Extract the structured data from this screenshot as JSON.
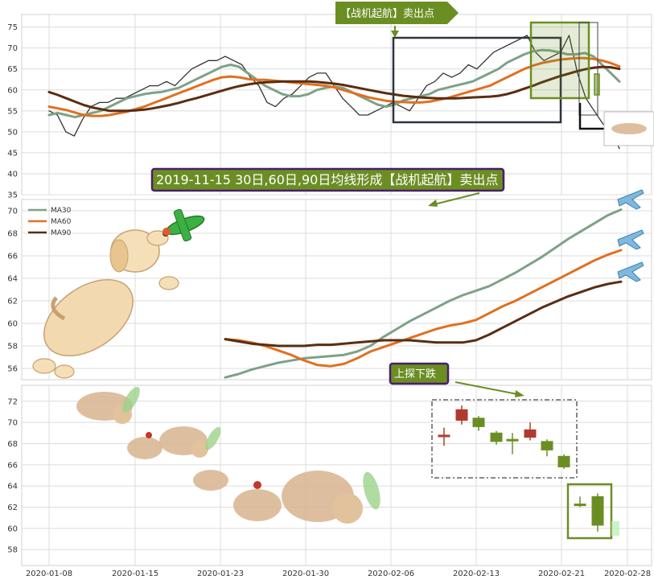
{
  "chart_data": [
    {
      "type": "line",
      "panel": "price",
      "ylim": [
        35,
        78
      ],
      "yticks": [
        35,
        40,
        45,
        50,
        55,
        60,
        65,
        70,
        75
      ],
      "series": [
        {
          "key": "close",
          "color": "#333333",
          "values": [
            55,
            54,
            50,
            49,
            53,
            56,
            57,
            57,
            58,
            58,
            59,
            60,
            61,
            61,
            62,
            61,
            63,
            65,
            66,
            67,
            67,
            68,
            67,
            66,
            63,
            61,
            57,
            56,
            58,
            59,
            61,
            63,
            64,
            64,
            61,
            58,
            56,
            54,
            54,
            55,
            56,
            57,
            56,
            55,
            58,
            61,
            62,
            64,
            63,
            64,
            66,
            65,
            67,
            69,
            70,
            71,
            72,
            73,
            69,
            67,
            68,
            69,
            73,
            64,
            58,
            55,
            52,
            50,
            46
          ]
        },
        {
          "key": "ma30",
          "name": "MA30",
          "color": "#7da287",
          "values": [
            54,
            54.5,
            54,
            53.5,
            54,
            54.5,
            55,
            56,
            57,
            58,
            58.5,
            59,
            59.3,
            59.5,
            60,
            60.5,
            61.5,
            62.5,
            63.5,
            64.5,
            65.5,
            66,
            65.5,
            64,
            62.5,
            61,
            60,
            59,
            58.5,
            58.5,
            59,
            60,
            60.5,
            60.8,
            60.5,
            59.5,
            58.5,
            57.5,
            56.5,
            56,
            56.5,
            57.5,
            58,
            58.5,
            59,
            60,
            60.5,
            61,
            61.5,
            62,
            63,
            64,
            65,
            66.5,
            67.5,
            68.5,
            69.2,
            69.5,
            69.4,
            69,
            68.5,
            68.5,
            68.8,
            68,
            66,
            64,
            62
          ]
        },
        {
          "key": "ma60",
          "name": "MA60",
          "color": "#e07020",
          "values": [
            56,
            55.6,
            55.2,
            54.6,
            54,
            53.8,
            53.8,
            54,
            54.4,
            54.8,
            55.4,
            56,
            56.8,
            57.6,
            58.4,
            59.2,
            60,
            60.8,
            61.6,
            62.4,
            63,
            63.2,
            63,
            62.6,
            62.4,
            62.4,
            62.2,
            62,
            61.8,
            61.6,
            61.4,
            61.2,
            61,
            60.6,
            60,
            59.4,
            58.8,
            58.2,
            57.8,
            57.4,
            57.2,
            57.1,
            57,
            57,
            57.2,
            57.6,
            58,
            58.6,
            59.2,
            59.8,
            60.4,
            61,
            62,
            63,
            64,
            65,
            65.8,
            66.4,
            66.8,
            67.2,
            67.4,
            67.6,
            67.6,
            67.4,
            67,
            66.4,
            65.6
          ]
        },
        {
          "key": "ma90",
          "name": "MA90",
          "color": "#5a2d12",
          "values": [
            59.5,
            58.8,
            58,
            57.2,
            56.4,
            55.8,
            55.4,
            55,
            55,
            55,
            55.1,
            55.3,
            55.6,
            56,
            56.4,
            56.9,
            57.5,
            58,
            58.6,
            59.2,
            59.8,
            60.4,
            60.9,
            61.3,
            61.6,
            61.8,
            61.9,
            62,
            62,
            62,
            62,
            61.9,
            61.7,
            61.5,
            61.2,
            60.8,
            60.4,
            60,
            59.6,
            59.2,
            58.9,
            58.6,
            58.4,
            58.2,
            58.1,
            58,
            58,
            58,
            58.1,
            58.2,
            58.3,
            58.4,
            58.6,
            59,
            59.6,
            60.3,
            61,
            61.8,
            62.5,
            63.2,
            63.8,
            64.4,
            64.9,
            65.3,
            65.5,
            65.4,
            65
          ]
        }
      ],
      "annotation": "【战机起航】卖出点"
    },
    {
      "type": "line",
      "panel": "moving-averages",
      "ylim": [
        55,
        71
      ],
      "yticks": [
        56,
        58,
        60,
        62,
        64,
        66,
        68,
        70
      ],
      "legend": [
        "MA30",
        "MA60",
        "MA90"
      ],
      "legend_position": "top-left",
      "series": [
        {
          "key": "ma30",
          "name": "MA30",
          "color": "#7da287",
          "values": [
            55.2,
            55.5,
            55.9,
            56.2,
            56.5,
            56.7,
            56.9,
            57,
            57.1,
            57.2,
            57.5,
            58,
            58.8,
            59.5,
            60.2,
            60.8,
            61.4,
            62,
            62.5,
            62.9,
            63.3,
            63.9,
            64.5,
            65.2,
            65.9,
            66.7,
            67.5,
            68.2,
            68.9,
            69.6,
            70.1
          ]
        },
        {
          "key": "ma60",
          "name": "MA60",
          "color": "#e07020",
          "values": [
            58.6,
            58.5,
            58.3,
            58,
            57.6,
            57.2,
            56.7,
            56.3,
            56.2,
            56.4,
            56.9,
            57.5,
            57.9,
            58.3,
            58.7,
            59.1,
            59.5,
            59.8,
            60,
            60.3,
            60.9,
            61.5,
            62,
            62.6,
            63.2,
            63.8,
            64.4,
            65,
            65.6,
            66.1,
            66.5
          ]
        },
        {
          "key": "ma90",
          "name": "MA90",
          "color": "#5a2d12",
          "values": [
            58.6,
            58.4,
            58.2,
            58.1,
            58,
            58,
            58,
            58.1,
            58.1,
            58.2,
            58.3,
            58.4,
            58.5,
            58.5,
            58.5,
            58.4,
            58.3,
            58.3,
            58.3,
            58.5,
            59,
            59.6,
            60.2,
            60.8,
            61.4,
            61.9,
            62.4,
            62.8,
            63.2,
            63.5,
            63.7
          ]
        }
      ],
      "annotation": "2019-11-15 30日,60日,90日均线形成【战机起航】卖出点"
    },
    {
      "type": "candlestick",
      "panel": "candles",
      "ylim": [
        56.5,
        73.5
      ],
      "yticks": [
        58,
        60,
        62,
        64,
        66,
        68,
        70,
        72
      ],
      "candles": [
        {
          "open": 68.8,
          "close": 68.8,
          "high": 69.5,
          "low": 67.8,
          "color": "#b03a2e"
        },
        {
          "open": 70.2,
          "close": 71.2,
          "high": 71.6,
          "low": 69.8,
          "color": "#b03a2e"
        },
        {
          "open": 70.4,
          "close": 69.6,
          "high": 70.6,
          "low": 69.2,
          "color": "#6b8e23"
        },
        {
          "open": 69.0,
          "close": 68.2,
          "high": 69.2,
          "low": 67.9,
          "color": "#6b8e23"
        },
        {
          "open": 68.4,
          "close": 68.4,
          "high": 69.0,
          "low": 67.0,
          "color": "#6b8e23"
        },
        {
          "open": 68.6,
          "close": 69.3,
          "high": 70.0,
          "low": 68.3,
          "color": "#b03a2e"
        },
        {
          "open": 68.2,
          "close": 67.4,
          "high": 68.4,
          "low": 66.8,
          "color": "#6b8e23"
        },
        {
          "open": 66.8,
          "close": 65.8,
          "high": 67.0,
          "low": 65.6,
          "color": "#6b8e23"
        },
        {
          "open": 62.3,
          "close": 62.3,
          "high": 63.0,
          "low": 62.0,
          "color": "#6b8e23"
        },
        {
          "open": 63.0,
          "close": 60.3,
          "high": 63.3,
          "low": 59.7,
          "color": "#6b8e23"
        }
      ],
      "annotation": "上探下跌"
    }
  ],
  "x_axis": {
    "labels": [
      "2020-01-08",
      "2020-01-15",
      "2020-01-23",
      "2020-01-30",
      "2020-02-06",
      "2020-02-13",
      "2020-02-21",
      "2020-02-28"
    ]
  },
  "colors": {
    "annotation_fill": "#6b8e23",
    "annotation_border": "#4b1d6b"
  }
}
